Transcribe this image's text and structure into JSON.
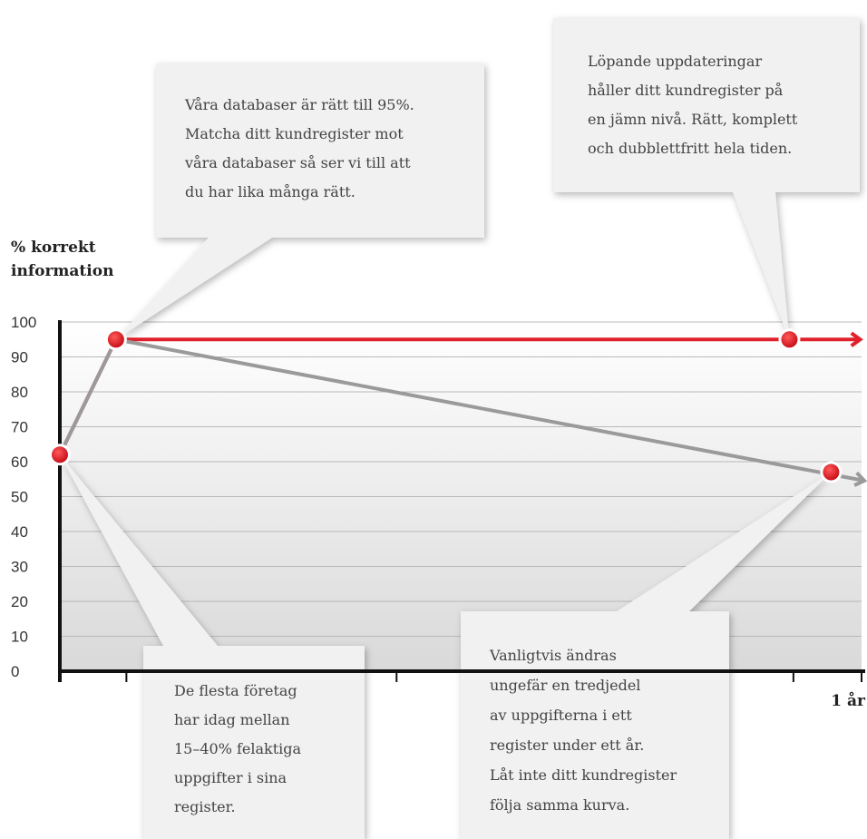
{
  "chart_data": {
    "type": "line",
    "ylabel_lines": [
      "% korrekt",
      "information"
    ],
    "xlabel": "1 år",
    "ylim": [
      0,
      100
    ],
    "yticks": [
      "0",
      "10",
      "20",
      "30",
      "40",
      "50",
      "60",
      "70",
      "80",
      "90",
      "100"
    ],
    "grid": true,
    "series": [
      {
        "values": [
          [
            0,
            62
          ],
          [
            0.07,
            95
          ],
          [
            0.91,
            95
          ]
        ],
        "color": "#e0202a"
      },
      {
        "values": [
          [
            0,
            62
          ],
          [
            0.07,
            95
          ],
          [
            0.97,
            56
          ]
        ],
        "color": "#9a9a9a"
      }
    ],
    "annotations": [
      {
        "lines": [
          "Våra databaser är rätt till 95%.",
          "Matcha ditt kundregister mot",
          "våra databaser så ser vi till att",
          "du har lika många rätt."
        ]
      },
      {
        "lines": [
          "Löpande uppdateringar",
          "håller ditt kundregister på",
          "en jämn nivå. Rätt, komplett",
          "och dubblettfritt hela tiden."
        ]
      },
      {
        "lines": [
          "De flesta företag",
          "har idag mellan",
          "15–40% felaktiga",
          "uppgifter i sina",
          "register."
        ]
      },
      {
        "lines": [
          "Vanligtvis ändras",
          "ungefär en tredjedel",
          "av uppgifterna i ett",
          "register under ett år.",
          "Låt inte ditt kundregister",
          "följa samma kurva."
        ]
      }
    ]
  },
  "colors": {
    "accent": "#e0202a",
    "decline": "#9a9a9a"
  }
}
